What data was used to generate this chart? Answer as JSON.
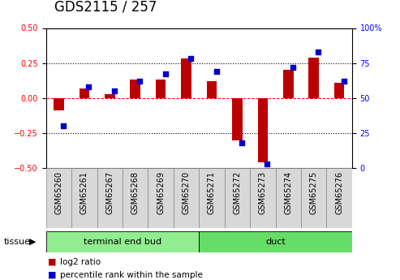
{
  "title": "GDS2115 / 257",
  "samples": [
    "GSM65260",
    "GSM65261",
    "GSM65267",
    "GSM65268",
    "GSM65269",
    "GSM65270",
    "GSM65271",
    "GSM65272",
    "GSM65273",
    "GSM65274",
    "GSM65275",
    "GSM65276"
  ],
  "log2_ratio": [
    -0.09,
    0.07,
    0.03,
    0.13,
    0.13,
    0.28,
    0.12,
    -0.3,
    -0.46,
    0.2,
    0.29,
    0.11
  ],
  "percentile_rank": [
    30,
    58,
    55,
    62,
    67,
    78,
    69,
    18,
    3,
    72,
    83,
    62
  ],
  "left_ylim": [
    -0.5,
    0.5
  ],
  "right_ylim": [
    0,
    100
  ],
  "left_yticks": [
    -0.5,
    -0.25,
    0.0,
    0.25,
    0.5
  ],
  "right_yticks": [
    0,
    25,
    50,
    75,
    100
  ],
  "right_yticklabels": [
    "0",
    "25",
    "50",
    "75",
    "100%"
  ],
  "hlines_dotted": [
    -0.25,
    0.25
  ],
  "hline_dashed": 0.0,
  "bar_color": "#bb0000",
  "dot_color": "#0000cc",
  "tissue_groups": [
    {
      "label": "terminal end bud",
      "start": 0,
      "end": 6,
      "color": "#90EE90"
    },
    {
      "label": "duct",
      "start": 6,
      "end": 12,
      "color": "#66DD66"
    }
  ],
  "tissue_label": "tissue",
  "legend_items": [
    {
      "label": "log2 ratio",
      "color": "#bb0000"
    },
    {
      "label": "percentile rank within the sample",
      "color": "#0000cc"
    }
  ],
  "title_fontsize": 12,
  "tick_fontsize": 7,
  "label_fontsize": 8,
  "bar_width": 0.4
}
